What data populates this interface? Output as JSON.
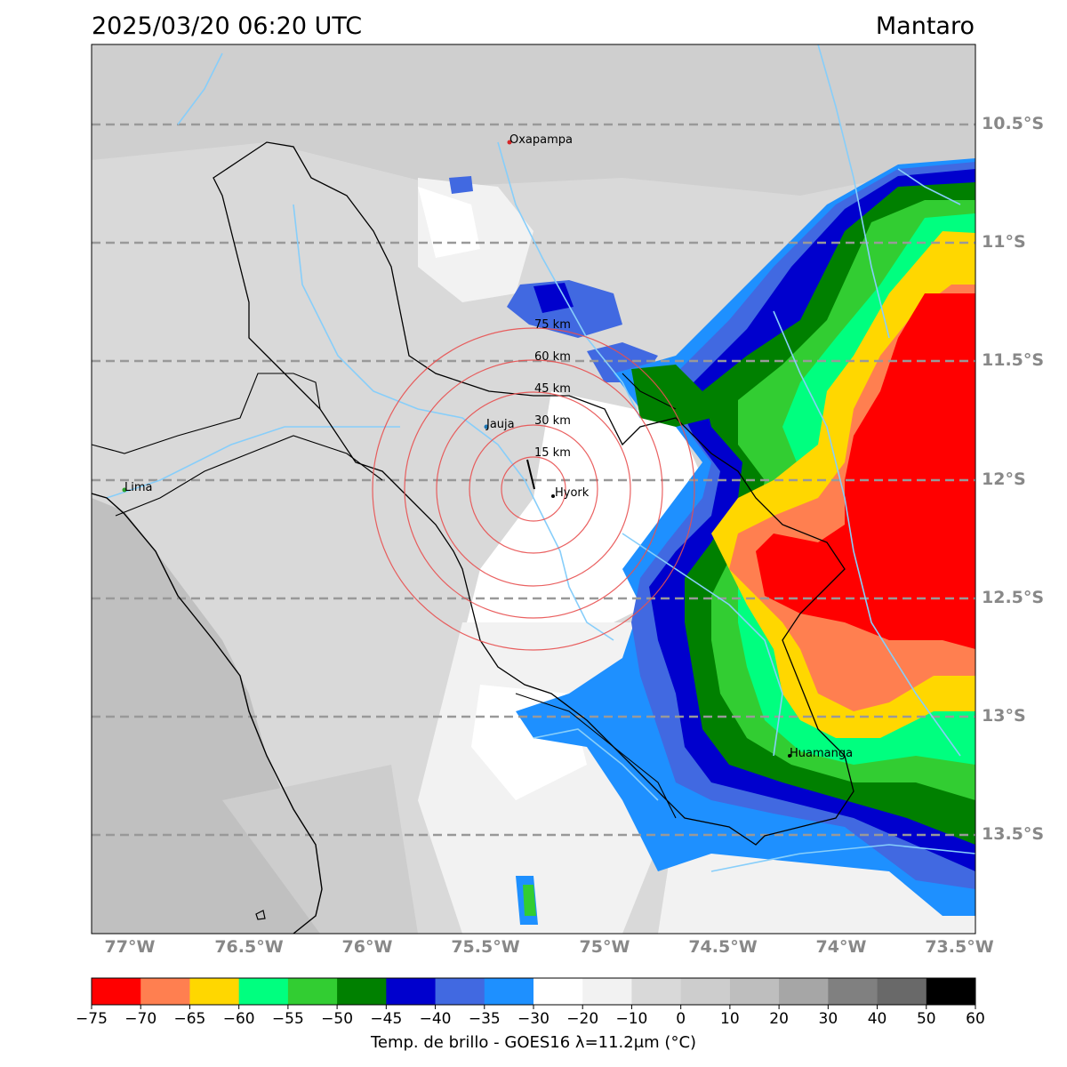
{
  "header": {
    "timestamp": "2025/03/20 06:20 UTC",
    "region": "Mantaro"
  },
  "latitude_labels": [
    "10.5°S",
    "11°S",
    "11.5°S",
    "12°S",
    "12.5°S",
    "13°S",
    "13.5°S"
  ],
  "longitude_labels": [
    "77°W",
    "76.5°W",
    "76°W",
    "75.5°W",
    "75°W",
    "74.5°W",
    "74°W",
    "73.5°W"
  ],
  "places": [
    {
      "name": "Oxapampa",
      "color": "#d62728"
    },
    {
      "name": "Jauja",
      "color": "#1f77b4"
    },
    {
      "name": "Hyork",
      "color": "#000000"
    },
    {
      "name": "Lima",
      "color": "#2ca02c"
    },
    {
      "name": "Huamanga",
      "color": "#000000"
    }
  ],
  "range_rings": [
    "15 km",
    "30 km",
    "45 km",
    "60 km",
    "75 km"
  ],
  "colorbar": {
    "ticks": [
      "−75",
      "−70",
      "−65",
      "−60",
      "−55",
      "−50",
      "−45",
      "−40",
      "−35",
      "−30",
      "−20",
      "−10",
      "0",
      "10",
      "20",
      "30",
      "40",
      "50",
      "60"
    ],
    "colors": [
      "#ff0000",
      "#ff7f50",
      "#ffd700",
      "#00ff7f",
      "#32cd32",
      "#008000",
      "#0000cd",
      "#4169e1",
      "#1e90ff",
      "#ffffff",
      "#f2f2f2",
      "#d9d9d9",
      "#cdcdcd",
      "#bebebe",
      "#a6a6a6",
      "#808080",
      "#696969",
      "#000000"
    ],
    "label": "Temp. de brillo - GOES16 λ=11.2μm (°C)"
  }
}
